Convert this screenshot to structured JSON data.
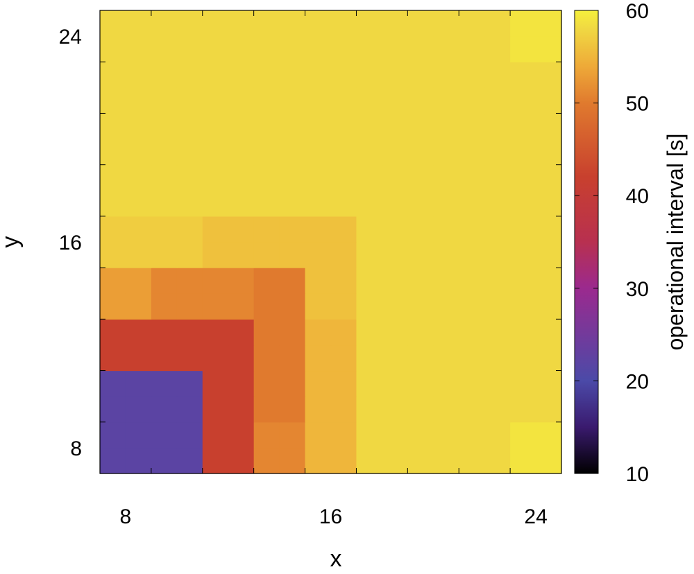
{
  "chart_data": {
    "type": "heatmap",
    "xlabel": "x",
    "ylabel": "y",
    "x": [
      7.5,
      8.5,
      9.5,
      10.5,
      11.5,
      12.5,
      13.5,
      14.5,
      15.5,
      16.5,
      17.5,
      18.5,
      19.5,
      20.5,
      21.5,
      22.5,
      23.5,
      24.5
    ],
    "y": [
      7.5,
      8.5,
      9.5,
      10.5,
      11.5,
      12.5,
      13.5,
      14.5,
      15.5,
      16.5,
      17.5,
      18.5,
      19.5,
      20.5,
      21.5,
      22.5,
      23.5,
      24.5
    ],
    "xlim": [
      7,
      25
    ],
    "ylim": [
      7,
      25
    ],
    "x_ticks": [
      8,
      16,
      24
    ],
    "y_ticks": [
      8,
      16,
      24
    ],
    "z": [
      [
        22,
        22,
        22,
        22,
        42,
        42,
        51,
        51,
        55,
        55,
        58,
        58,
        58,
        58,
        58,
        58,
        59,
        59
      ],
      [
        22,
        22,
        22,
        22,
        42,
        42,
        51,
        51,
        55,
        55,
        58,
        58,
        58,
        58,
        58,
        58,
        59,
        59
      ],
      [
        22,
        22,
        22,
        22,
        42,
        42,
        50,
        50,
        55,
        55,
        58,
        58,
        58,
        58,
        58,
        58,
        58,
        58
      ],
      [
        22,
        22,
        22,
        22,
        42,
        42,
        50,
        50,
        55,
        55,
        58,
        58,
        58,
        58,
        58,
        58,
        58,
        58
      ],
      [
        42,
        42,
        42,
        42,
        42,
        42,
        50,
        50,
        55,
        55,
        58,
        58,
        58,
        58,
        58,
        58,
        58,
        58
      ],
      [
        42,
        42,
        42,
        42,
        42,
        42,
        50,
        50,
        55,
        55,
        58,
        58,
        58,
        58,
        58,
        58,
        58,
        58
      ],
      [
        53,
        53,
        51,
        51,
        51,
        51,
        50,
        50,
        56,
        56,
        58,
        58,
        58,
        58,
        58,
        58,
        58,
        58
      ],
      [
        53,
        53,
        51,
        51,
        51,
        51,
        50,
        50,
        56,
        56,
        58,
        58,
        58,
        58,
        58,
        58,
        58,
        58
      ],
      [
        57,
        57,
        57,
        57,
        56,
        56,
        56,
        56,
        56,
        56,
        58,
        58,
        58,
        58,
        58,
        58,
        58,
        58
      ],
      [
        57,
        57,
        57,
        57,
        56,
        56,
        56,
        56,
        56,
        56,
        58,
        58,
        58,
        58,
        58,
        58,
        58,
        58
      ],
      [
        58,
        58,
        58,
        58,
        58,
        58,
        58,
        58,
        58,
        58,
        58,
        58,
        58,
        58,
        58,
        58,
        58,
        58
      ],
      [
        58,
        58,
        58,
        58,
        58,
        58,
        58,
        58,
        58,
        58,
        58,
        58,
        58,
        58,
        58,
        58,
        58,
        58
      ],
      [
        58,
        58,
        58,
        58,
        58,
        58,
        58,
        58,
        58,
        58,
        58,
        58,
        58,
        58,
        58,
        58,
        58,
        58
      ],
      [
        58,
        58,
        58,
        58,
        58,
        58,
        58,
        58,
        58,
        58,
        58,
        58,
        58,
        58,
        58,
        58,
        58,
        58
      ],
      [
        58,
        58,
        58,
        58,
        58,
        58,
        58,
        58,
        58,
        58,
        58,
        58,
        58,
        58,
        58,
        58,
        58,
        58
      ],
      [
        58,
        58,
        58,
        58,
        58,
        58,
        58,
        58,
        58,
        58,
        58,
        58,
        58,
        58,
        58,
        58,
        58,
        58
      ],
      [
        58,
        58,
        58,
        58,
        58,
        58,
        58,
        58,
        58,
        58,
        58,
        58,
        58,
        58,
        58,
        58,
        59,
        59
      ],
      [
        58,
        58,
        58,
        58,
        58,
        58,
        58,
        58,
        58,
        58,
        58,
        58,
        58,
        58,
        58,
        58,
        59,
        59
      ]
    ],
    "colorbar": {
      "label": "operational interval [s]",
      "range": [
        10,
        60
      ],
      "ticks": [
        10,
        20,
        30,
        40,
        50,
        60
      ]
    },
    "colormap": [
      [
        10,
        "#000000"
      ],
      [
        15,
        "#3a1a6e"
      ],
      [
        20,
        "#4b4aa8"
      ],
      [
        30,
        "#9b2a8e"
      ],
      [
        35,
        "#b83050"
      ],
      [
        42,
        "#c8402e"
      ],
      [
        50,
        "#e07a2e"
      ],
      [
        54,
        "#eeaa38"
      ],
      [
        58,
        "#f0d842"
      ],
      [
        60,
        "#f5f03c"
      ]
    ]
  }
}
